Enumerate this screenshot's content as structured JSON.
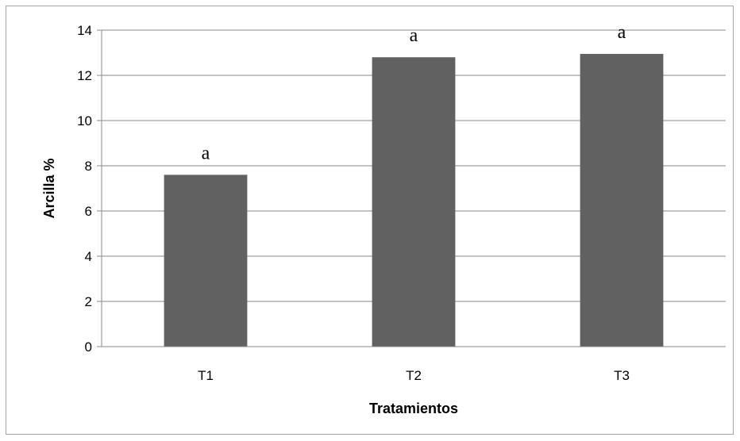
{
  "chart_data": {
    "type": "bar",
    "categories": [
      "T1",
      "T2",
      "T3"
    ],
    "values": [
      7.6,
      12.8,
      12.95
    ],
    "bar_labels": [
      "a",
      "a",
      "a"
    ],
    "xlabel": "Tratamientos",
    "ylabel": "Arcilla %",
    "ylim": [
      0,
      14
    ],
    "yticks": [
      "0",
      "2",
      "4",
      "6",
      "8",
      "10",
      "12",
      "14"
    ],
    "grid": true,
    "bar_color": "#616161",
    "grid_color": "#888888"
  }
}
